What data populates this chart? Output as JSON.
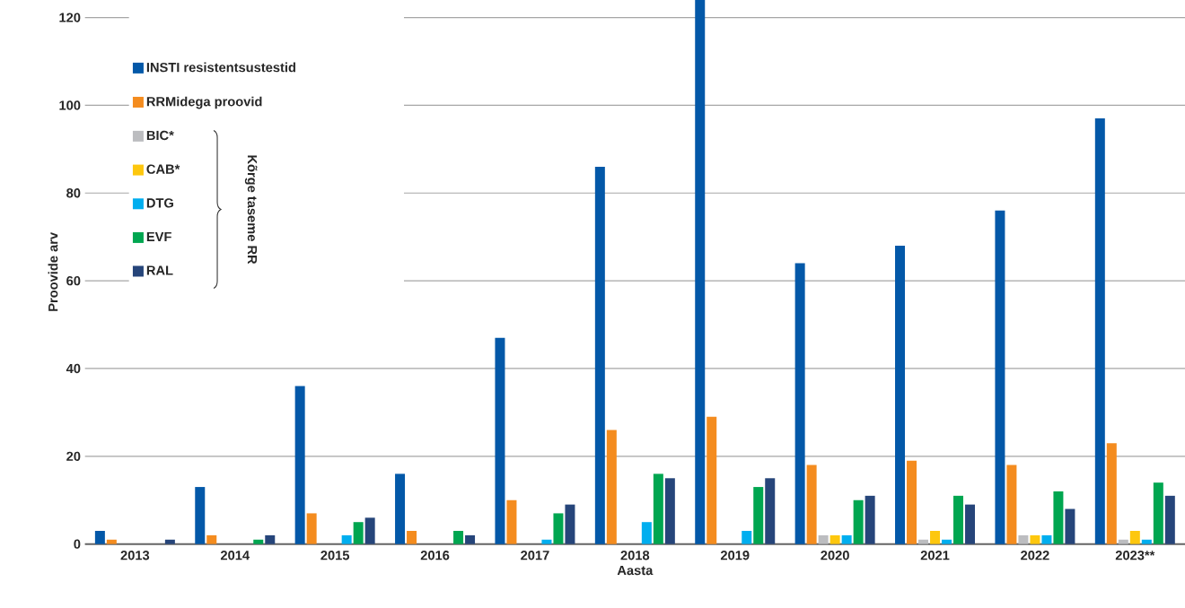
{
  "chart_data": {
    "type": "bar",
    "xlabel": "Aasta",
    "ylabel": "Proovide arv",
    "categories": [
      "2013",
      "2014",
      "2015",
      "2016",
      "2017",
      "2018",
      "2019",
      "2020",
      "2021",
      "2022",
      "2023**"
    ],
    "series": [
      {
        "name": "INSTI resistentsustestid",
        "color": "#0358a8",
        "values": [
          3,
          13,
          36,
          16,
          47,
          86,
          124,
          64,
          68,
          76,
          97
        ]
      },
      {
        "name": "RRMidega proovid",
        "color": "#f48c1f",
        "values": [
          1,
          2,
          7,
          3,
          10,
          26,
          29,
          18,
          19,
          18,
          23
        ]
      },
      {
        "name": "BIC*",
        "color": "#bcbdc0",
        "values": [
          0,
          0,
          0,
          0,
          0,
          0,
          0,
          2,
          1,
          2,
          1
        ]
      },
      {
        "name": "CAB*",
        "color": "#fdc70e",
        "values": [
          0,
          0,
          0,
          0,
          0,
          0,
          0,
          2,
          3,
          2,
          3
        ]
      },
      {
        "name": "DTG",
        "color": "#00aeef",
        "values": [
          0,
          0,
          2,
          0,
          1,
          5,
          3,
          2,
          1,
          2,
          1
        ]
      },
      {
        "name": "EVF",
        "color": "#00a650",
        "values": [
          0,
          1,
          5,
          3,
          7,
          16,
          13,
          10,
          11,
          12,
          14
        ]
      },
      {
        "name": "RAL",
        "color": "#26457a",
        "values": [
          1,
          2,
          6,
          2,
          9,
          15,
          15,
          11,
          9,
          8,
          11
        ]
      }
    ],
    "ylim": [
      0,
      124
    ],
    "yticks": [
      0,
      20,
      40,
      60,
      80,
      100,
      120
    ],
    "grid": "y",
    "legend": "top left",
    "annotations": [
      "Kõrge taseme RR"
    ]
  }
}
